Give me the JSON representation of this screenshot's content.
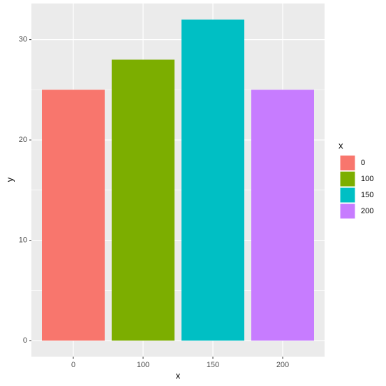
{
  "chart_data": {
    "type": "bar",
    "xlabel": "x",
    "ylabel": "y",
    "categories": [
      "0",
      "100",
      "150",
      "200"
    ],
    "values": [
      25,
      28,
      32,
      25
    ],
    "colors": [
      "#F8766D",
      "#7CAE00",
      "#00BFC4",
      "#C77CFF"
    ],
    "ylim": [
      -1.6,
      33.6
    ],
    "yticks": [
      0,
      10,
      20,
      30
    ],
    "y_minor_ticks": [
      5,
      15,
      25
    ],
    "grid": true,
    "legend_title": "x",
    "legend_position": "right"
  }
}
